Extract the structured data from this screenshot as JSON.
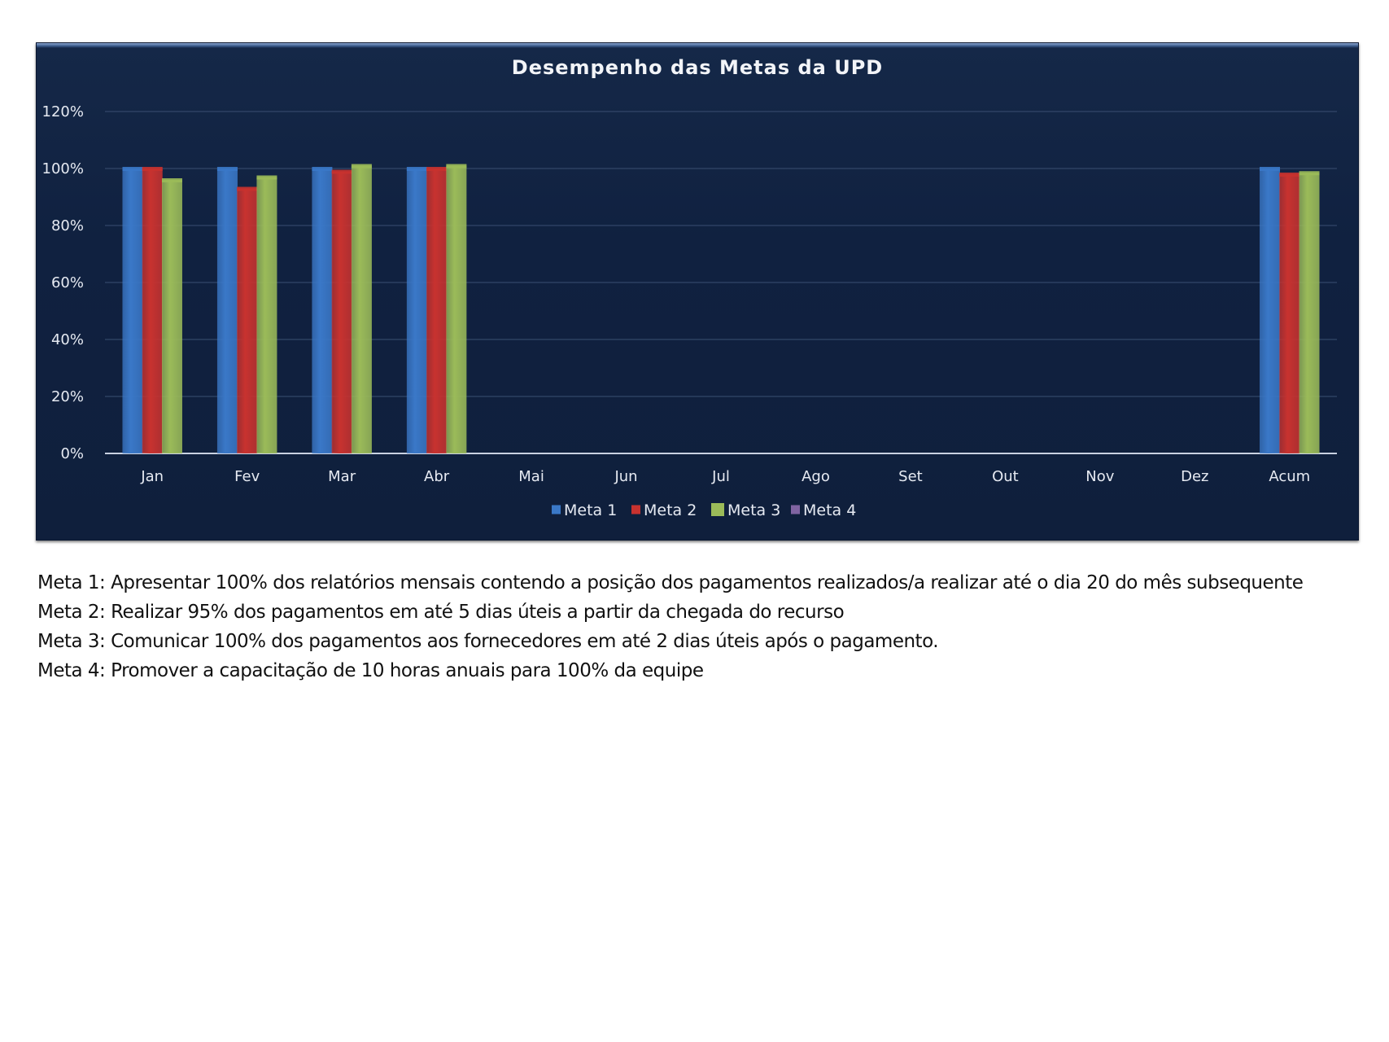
{
  "chart_data": {
    "type": "bar",
    "title": "Desempenho das Metas da UPD",
    "xlabel": "",
    "ylabel": "",
    "categories": [
      "Jan",
      "Fev",
      "Mar",
      "Abr",
      "Mai",
      "Jun",
      "Jul",
      "Ago",
      "Set",
      "Out",
      "Nov",
      "Dez",
      "Acum"
    ],
    "y_ticks": [
      "0%",
      "20%",
      "40%",
      "60%",
      "80%",
      "100%",
      "120%"
    ],
    "ylim": [
      0,
      1.2
    ],
    "grid": true,
    "legend_position": "bottom",
    "series": [
      {
        "name": "Meta 1",
        "color": "#3a78c8",
        "values": [
          1.0,
          1.0,
          1.0,
          1.0,
          null,
          null,
          null,
          null,
          null,
          null,
          null,
          null,
          1.0
        ]
      },
      {
        "name": "Meta 2",
        "color": "#c8322f",
        "values": [
          1.0,
          0.93,
          0.99,
          1.0,
          null,
          null,
          null,
          null,
          null,
          null,
          null,
          null,
          0.98
        ]
      },
      {
        "name": "Meta 3",
        "color": "#9bbb59",
        "values": [
          0.96,
          0.97,
          1.01,
          1.01,
          null,
          null,
          null,
          null,
          null,
          null,
          null,
          null,
          0.985
        ]
      },
      {
        "name": "Meta 4",
        "color": "#8064a2",
        "values": [
          null,
          null,
          null,
          null,
          null,
          null,
          null,
          null,
          null,
          null,
          null,
          null,
          null
        ]
      }
    ]
  },
  "notes": [
    "Meta 1: Apresentar 100% dos relatórios mensais contendo a posição dos pagamentos realizados/a realizar até o dia 20 do mês subsequente",
    "Meta 2: Realizar 95% dos pagamentos em até 5 dias úteis a partir da chegada do recurso",
    "Meta 3: Comunicar 100% dos pagamentos aos fornecedores em até 2 dias úteis após o pagamento.",
    "Meta 4: Promover a capacitação de 10 horas anuais para 100% da equipe"
  ]
}
